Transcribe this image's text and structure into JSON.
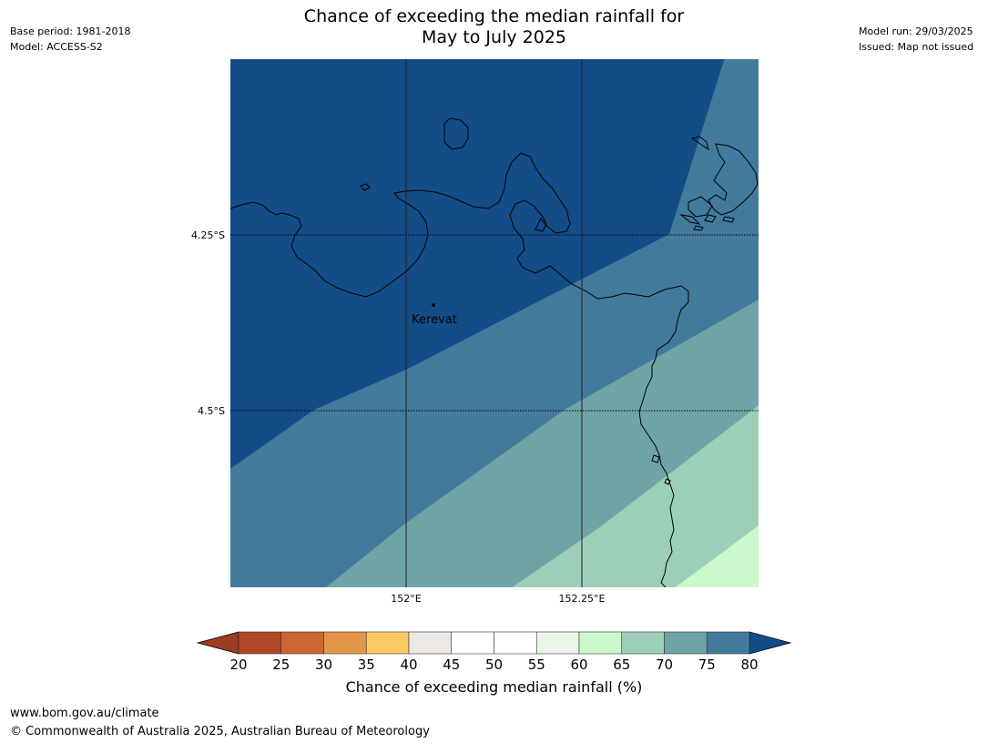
{
  "header": {
    "title_line1": "Chance of exceeding the median rainfall for",
    "title_line2": "May to July 2025",
    "base_period": "Base period: 1981-2018",
    "model": "Model: ACCESS-S2",
    "model_run": "Model run: 29/03/2025",
    "issued": "Issued: Map not issued"
  },
  "map": {
    "lat_labels": [
      "4.25°S",
      "4.5°S"
    ],
    "lon_labels": [
      "152°E",
      "152.25°E"
    ],
    "place": {
      "name": "Kerevat"
    },
    "region_colors": [
      "#144c87",
      "#417a9b",
      "#6fa4a6",
      "#9dcfb8",
      "#ccf9cb"
    ]
  },
  "colorbar": {
    "title": "Chance of exceeding median rainfall (%)",
    "ticks": [
      "20",
      "25",
      "30",
      "35",
      "40",
      "45",
      "50",
      "55",
      "60",
      "65",
      "70",
      "75",
      "80"
    ],
    "colors": [
      "#ae4726",
      "#cd6633",
      "#e3954a",
      "#fdcb66",
      "#ece8e4",
      "#ffffff",
      "#ffffff",
      "#e9f6e7",
      "#ccf9cb",
      "#9dcfb8",
      "#6fa4a6",
      "#417a9b"
    ],
    "under_color": "#9b3c23",
    "over_color": "#144c87"
  },
  "footer": {
    "url": "www.bom.gov.au/climate",
    "copyright": "© Commonwealth of Australia 2025, Australian Bureau of Meteorology"
  }
}
